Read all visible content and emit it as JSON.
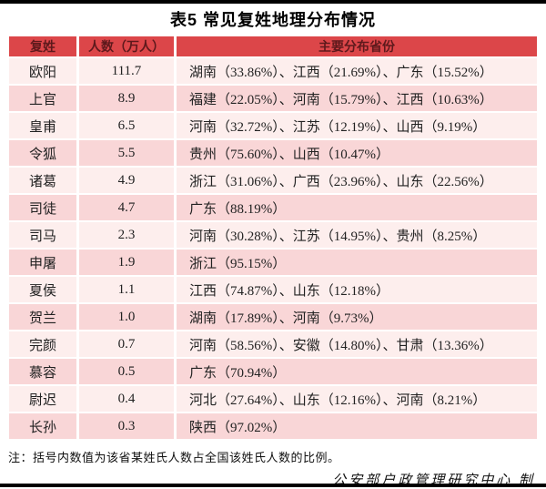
{
  "title": "表5 常见复姓地理分布情况",
  "table": {
    "headers": [
      "复姓",
      "人数（万人）",
      "主要分布省份"
    ],
    "rows": [
      {
        "surname": "欧阳",
        "population": "111.7",
        "provinces": "湖南（33.86%）、江西（21.69%）、广东（15.52%）"
      },
      {
        "surname": "上官",
        "population": "8.9",
        "provinces": "福建（22.05%）、河南（15.79%）、江西（10.63%）"
      },
      {
        "surname": "皇甫",
        "population": "6.5",
        "provinces": "河南（32.72%）、江苏（12.19%）、山西（9.19%）"
      },
      {
        "surname": "令狐",
        "population": "5.5",
        "provinces": "贵州（75.60%）、山西（10.47%）"
      },
      {
        "surname": "诸葛",
        "population": "4.9",
        "provinces": "浙江（31.06%）、广西（23.96%）、山东（22.56%）"
      },
      {
        "surname": "司徒",
        "population": "4.7",
        "provinces": "广东（88.19%）"
      },
      {
        "surname": "司马",
        "population": "2.3",
        "provinces": "河南（30.28%）、江苏（14.95%）、贵州（8.25%）"
      },
      {
        "surname": "申屠",
        "population": "1.9",
        "provinces": "浙江（95.15%）"
      },
      {
        "surname": "夏侯",
        "population": "1.1",
        "provinces": "江西（74.87%）、山东（12.18%）"
      },
      {
        "surname": "贺兰",
        "population": "1.0",
        "provinces": "湖南（17.89%）、河南（9.73%）"
      },
      {
        "surname": "完颜",
        "population": "0.7",
        "provinces": "河南（58.56%）、安徽（14.80%）、甘肃（13.36%）"
      },
      {
        "surname": "慕容",
        "population": "0.5",
        "provinces": "广东（70.94%）"
      },
      {
        "surname": "尉迟",
        "population": "0.4",
        "provinces": "河北（27.64%）、山东（12.16%）、河南（8.21%）"
      },
      {
        "surname": "长孙",
        "population": "0.3",
        "provinces": "陕西（97.02%）"
      }
    ]
  },
  "note": "注：括号内数值为该省某姓氏人数占全国该姓氏人数的比例。",
  "credit": "公安部户政管理研究中心 制",
  "colors": {
    "header_background": "#dc4649",
    "header_text": "#5e191c",
    "row_light": "#fdeeed",
    "row_dark": "#f9d6d7",
    "body_text": "#222222",
    "screen_bar": "#000000"
  }
}
